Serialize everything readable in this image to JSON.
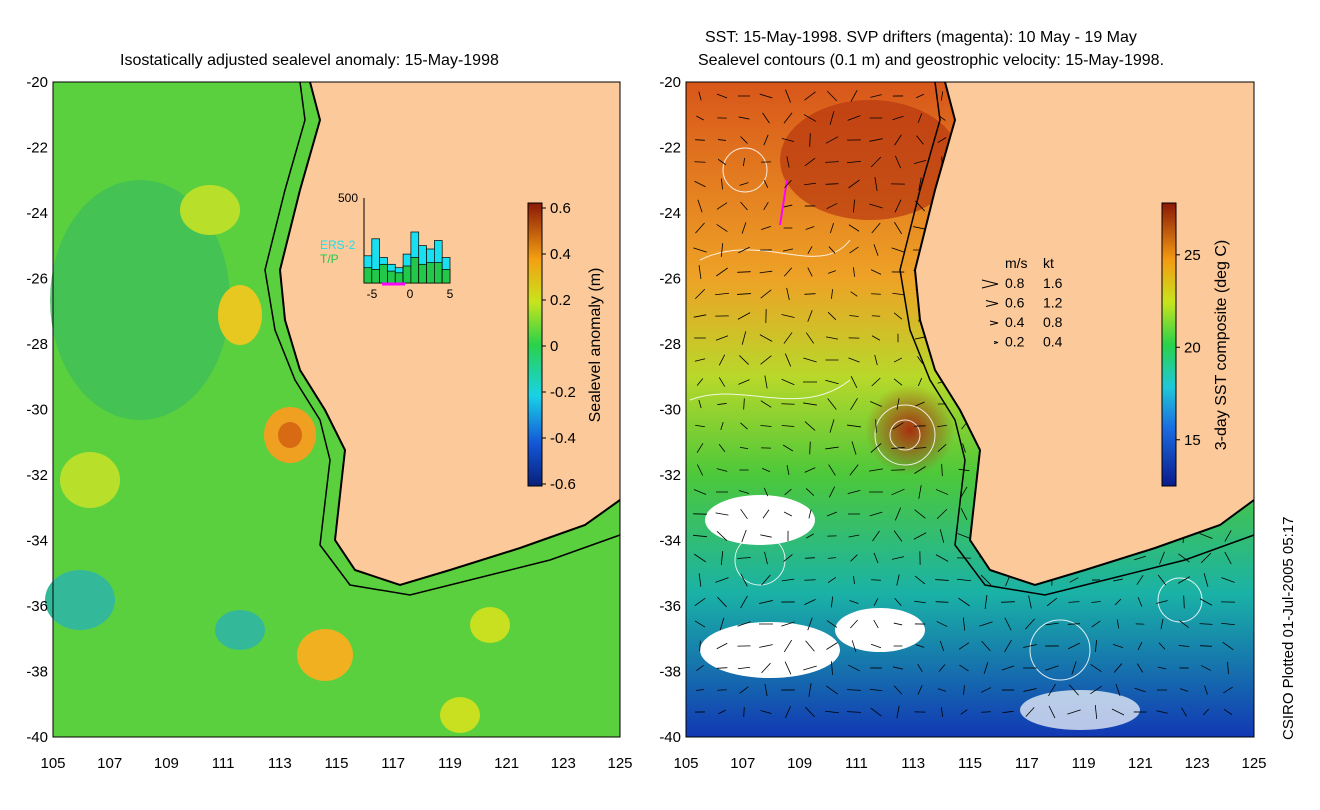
{
  "left_panel": {
    "title": "Isostatically adjusted sealevel anomaly: 15-May-1998",
    "colorbar": {
      "label": "Sealevel anomaly (m)",
      "ticks": [
        "0.6",
        "0.4",
        "0.2",
        "0",
        "-0.2",
        "-0.4",
        "-0.6"
      ]
    },
    "inset": {
      "ymax_label": "500",
      "legend": [
        "ERS-2",
        "T/P"
      ],
      "xticks": [
        "-5",
        "0",
        "5"
      ],
      "cyan_values": [
        160,
        260,
        150,
        110,
        90,
        170,
        300,
        220,
        200,
        250,
        150
      ],
      "green_values": [
        90,
        80,
        110,
        70,
        60,
        100,
        150,
        110,
        120,
        120,
        80
      ],
      "colors": {
        "ers2": "#19e0f0",
        "tp": "#22c84a"
      }
    }
  },
  "right_panel": {
    "title_line1": "SST: 15-May-1998. SVP drifters (magenta): 10 May - 19 May",
    "title_line2": "Sealevel contours (0.1 m) and geostrophic velocity: 15-May-1998.",
    "colorbar": {
      "label": "3-day SST composite (deg C)",
      "ticks": [
        "25",
        "20",
        "15"
      ]
    },
    "velocity_legend": {
      "header_ms": "m/s",
      "header_kt": "kt",
      "rows": [
        {
          "ms": "0.8",
          "kt": "1.6"
        },
        {
          "ms": "0.6",
          "kt": "1.2"
        },
        {
          "ms": "0.4",
          "kt": "0.8"
        },
        {
          "ms": "0.2",
          "kt": "0.4"
        }
      ]
    }
  },
  "axes": {
    "lat_ticks": [
      "-20",
      "-22",
      "-24",
      "-26",
      "-28",
      "-30",
      "-32",
      "-34",
      "-36",
      "-38",
      "-40"
    ],
    "lon_ticks": [
      "105",
      "107",
      "109",
      "111",
      "113",
      "115",
      "117",
      "119",
      "121",
      "123",
      "125"
    ]
  },
  "footer": "CSIRO Plotted 01-Jul-2005 05:17",
  "colors": {
    "land": "#fbc99a",
    "coast": "#000000",
    "drifter": "#ff00ff",
    "contour": "#ffffff"
  }
}
